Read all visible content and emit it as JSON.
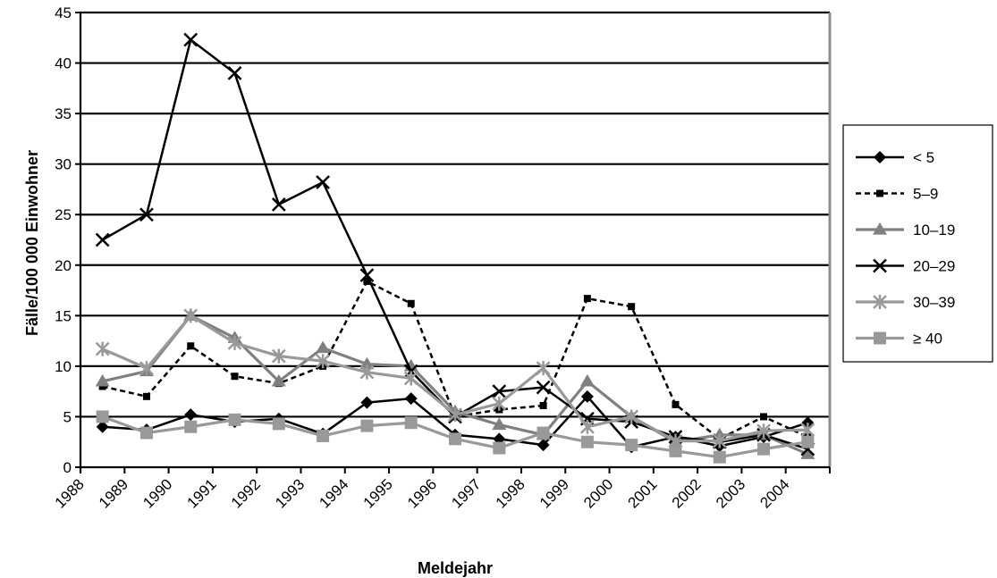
{
  "chart_data": {
    "type": "line",
    "title": "",
    "xlabel": "Meldejahr",
    "ylabel": "Fälle/100 000 Einwohner",
    "ylim": [
      0,
      45
    ],
    "yticks": [
      0,
      5,
      10,
      15,
      20,
      25,
      30,
      35,
      40,
      45
    ],
    "x_tick_labels": [
      "1988",
      "1989",
      "1990",
      "1991",
      "1992",
      "1993",
      "1994",
      "1995",
      "1996",
      "1997",
      "1998",
      "1999",
      "2000",
      "2001",
      "2002",
      "2003",
      "2004"
    ],
    "categories": [
      "1988",
      "1989",
      "1990",
      "1991",
      "1992",
      "1993",
      "1994",
      "1995",
      "1996",
      "1997",
      "1998",
      "1999",
      "2000",
      "2001",
      "2002",
      "2003",
      "2004"
    ],
    "grid": true,
    "legend_position": "right",
    "series": [
      {
        "name": "< 5",
        "color": "#000000",
        "dash": "solid",
        "marker": "diamond",
        "values": [
          4.0,
          3.7,
          5.2,
          4.5,
          4.8,
          3.3,
          6.4,
          6.8,
          3.2,
          2.8,
          2.2,
          7.0,
          2.0,
          3.0,
          2.1,
          3.0,
          4.4
        ]
      },
      {
        "name": "5–9",
        "color": "#000000",
        "dash": "dashed",
        "marker": "square-small",
        "values": [
          8.0,
          7.0,
          12.0,
          9.0,
          8.3,
          10.0,
          18.4,
          16.2,
          5.0,
          5.7,
          6.1,
          16.7,
          15.9,
          6.2,
          2.8,
          5.0,
          3.0
        ]
      },
      {
        "name": "10–19",
        "color": "#808080",
        "dash": "solid",
        "marker": "triangle",
        "values": [
          8.5,
          9.5,
          15.0,
          12.8,
          8.5,
          11.8,
          10.2,
          10.0,
          5.5,
          4.2,
          3.2,
          8.5,
          5.0,
          2.5,
          3.2,
          3.2,
          1.3
        ]
      },
      {
        "name": "20–29",
        "color": "#000000",
        "dash": "solid",
        "marker": "x",
        "values": [
          22.5,
          25.0,
          42.3,
          39.0,
          26.0,
          28.2,
          19.0,
          9.5,
          5.0,
          7.5,
          7.9,
          4.8,
          4.5,
          3.0,
          2.5,
          3.2,
          1.8
        ]
      },
      {
        "name": "30–39",
        "color": "#999999",
        "dash": "solid",
        "marker": "star",
        "values": [
          11.7,
          9.8,
          15.0,
          12.3,
          11.0,
          10.5,
          9.4,
          8.8,
          5.2,
          6.3,
          9.8,
          4.0,
          5.0,
          2.6,
          2.6,
          3.6,
          3.7
        ]
      },
      {
        "name": "≥ 40",
        "color": "#999999",
        "dash": "solid",
        "marker": "square",
        "values": [
          5.0,
          3.4,
          4.0,
          4.7,
          4.3,
          3.1,
          4.1,
          4.4,
          2.8,
          1.9,
          3.4,
          2.5,
          2.2,
          1.6,
          1.0,
          1.8,
          2.5
        ]
      }
    ]
  }
}
